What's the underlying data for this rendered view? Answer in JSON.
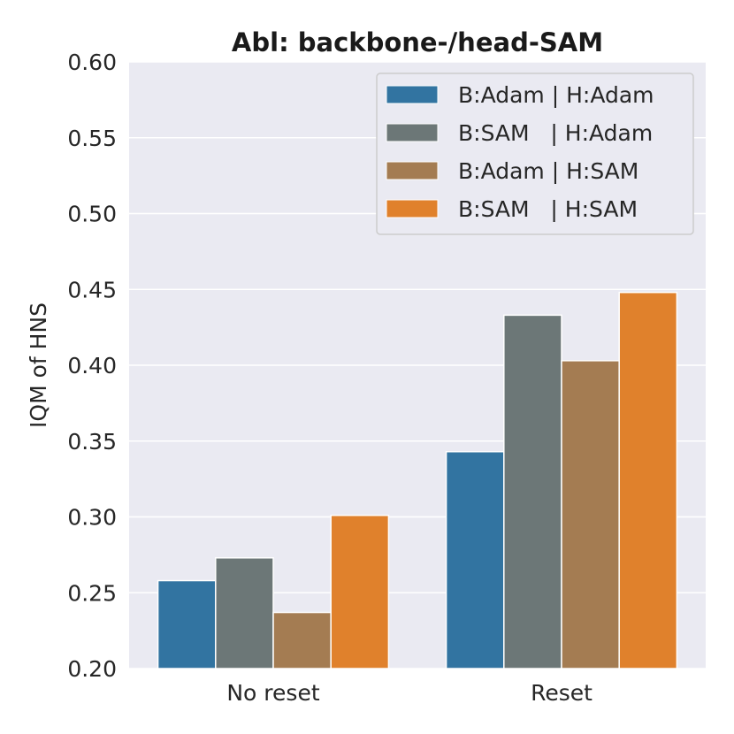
{
  "chart_data": {
    "type": "bar",
    "title": "Abl: backbone-/head-SAM",
    "xlabel": "",
    "ylabel": "IQM of HNS",
    "ylim": [
      0.2,
      0.6
    ],
    "yticks": [
      "0.20",
      "0.25",
      "0.30",
      "0.35",
      "0.40",
      "0.45",
      "0.50",
      "0.55",
      "0.60"
    ],
    "categories": [
      "No reset",
      "Reset"
    ],
    "series": [
      {
        "name": "B:Adam | H:Adam",
        "color": "#3274a1",
        "values": [
          0.258,
          0.343
        ]
      },
      {
        "name": "B:SAM   | H:Adam",
        "color": "#6c7777",
        "values": [
          0.273,
          0.433
        ]
      },
      {
        "name": "B:Adam | H:SAM",
        "color": "#a47c52",
        "values": [
          0.237,
          0.403
        ]
      },
      {
        "name": "B:SAM   | H:SAM",
        "color": "#e0812c",
        "values": [
          0.301,
          0.448
        ]
      }
    ],
    "grid": true,
    "legend_position": "top-right",
    "background_color": "#eaeaf2"
  }
}
